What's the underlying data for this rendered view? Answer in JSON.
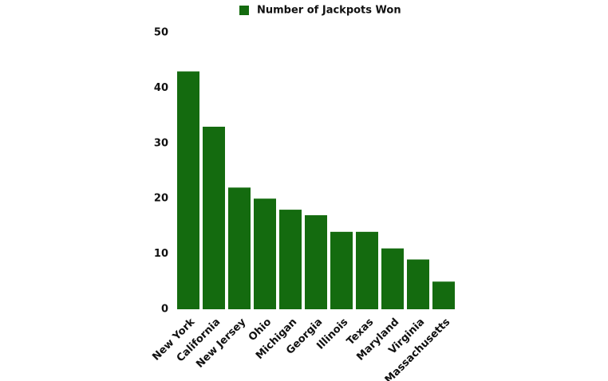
{
  "chart_data": {
    "type": "bar",
    "legend": "Number of Jackpots Won",
    "categories": [
      "New York",
      "California",
      "New Jersey",
      "Ohio",
      "Michigan",
      "Georgia",
      "Illinois",
      "Texas",
      "Maryland",
      "Virginia",
      "Massachusetts"
    ],
    "values": [
      43,
      33,
      22,
      20,
      18,
      17,
      14,
      14,
      11,
      9,
      5
    ],
    "color": "#146b0f",
    "ylim": [
      0,
      50
    ],
    "yticks": [
      0,
      10,
      20,
      30,
      40,
      50
    ],
    "grid": false
  }
}
